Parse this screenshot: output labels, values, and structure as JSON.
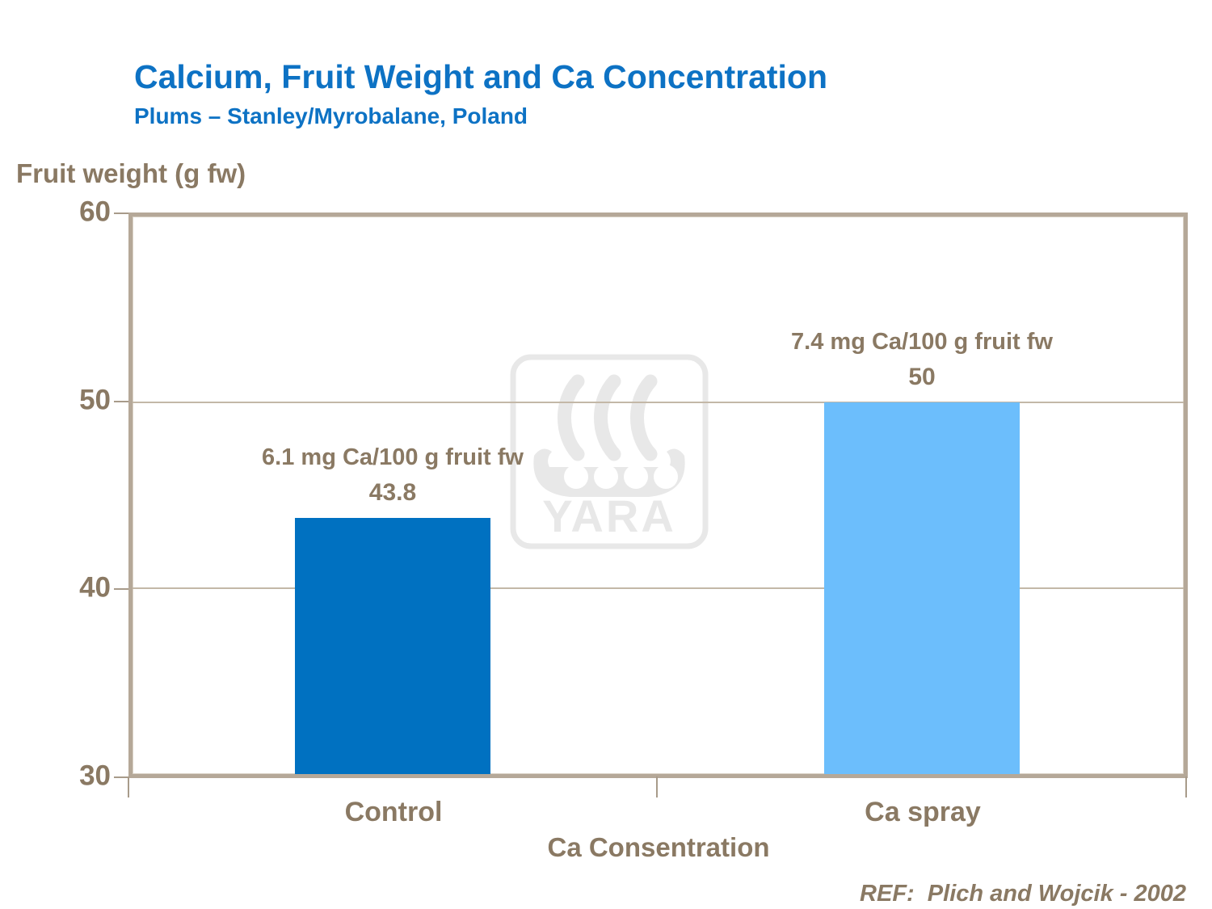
{
  "header": {
    "title": "Calcium, Fruit Weight and Ca Concentration",
    "subtitle": "Plums – Stanley/Myrobalane, Poland"
  },
  "watermark": {
    "text": "YARA"
  },
  "footer": {
    "reference": "REF:  Plich and Wojcik - 2002"
  },
  "chart_data": {
    "type": "bar",
    "title": "Calcium, Fruit Weight and Ca Concentration",
    "subtitle": "Plums – Stanley/Myrobalane, Poland",
    "categories": [
      "Control",
      "Ca spray"
    ],
    "values": [
      43.8,
      50
    ],
    "value_labels": [
      "43.8",
      "50"
    ],
    "annotations": [
      "6.1 mg Ca/100 g fruit fw",
      "7.4 mg Ca/100 g fruit fw"
    ],
    "bar_colors": [
      "#0071c1",
      "#6cbefc"
    ],
    "xlabel": "Ca Consentration",
    "ylabel": "Fruit weight (g fw)",
    "ylim": [
      30,
      60
    ],
    "y_ticks": [
      60,
      50,
      40,
      30
    ],
    "gridlines": [
      50,
      40
    ],
    "grid": true,
    "legend": "none",
    "accent_text_color": "#8a7963",
    "title_color": "#0d72c4",
    "axis_border_color": "#b5a898"
  }
}
